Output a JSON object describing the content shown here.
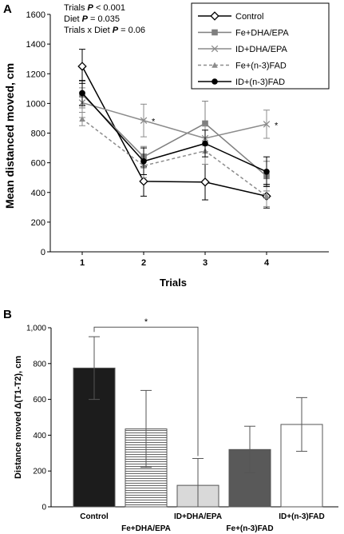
{
  "chart_data": [
    {
      "panel": "A",
      "type": "line",
      "xlabel": "Trials",
      "ylabel": "Mean distanced moved, cm",
      "ylim": [
        0,
        1600
      ],
      "yticks": [
        0,
        200,
        400,
        600,
        800,
        1000,
        1200,
        1400,
        1600
      ],
      "categories": [
        "1",
        "2",
        "3",
        "4"
      ],
      "annotations": [
        {
          "pre": "Trials ",
          "mid": "P",
          "post": " < 0.001"
        },
        {
          "pre": "Diet ",
          "mid": "P",
          "post": " = 0.035"
        },
        {
          "pre": "Trials x Diet ",
          "mid": "P",
          "post": " = 0.06"
        }
      ],
      "significance_marks": [
        {
          "category": "2",
          "label": "*"
        },
        {
          "category": "4",
          "label": "*"
        }
      ],
      "legend_position": "top-right",
      "series": [
        {
          "name": "Control",
          "values": [
            1250,
            475,
            470,
            375
          ],
          "errors": [
            115,
            100,
            120,
            80
          ],
          "marker": "diamond-open",
          "color": "#000000",
          "dashed": false
        },
        {
          "name": "Fe+DHA/EPA",
          "values": [
            1060,
            640,
            865,
            510
          ],
          "errors": [
            90,
            70,
            150,
            100
          ],
          "marker": "square",
          "color": "#7f7f7f",
          "dashed": false
        },
        {
          "name": "ID+DHA/EPA",
          "values": [
            1005,
            885,
            765,
            860
          ],
          "errors": [
            100,
            110,
            90,
            95
          ],
          "marker": "cross",
          "color": "#8c8c8c",
          "dashed": false
        },
        {
          "name": "Fe+(n-3)FAD",
          "values": [
            895,
            580,
            680,
            375
          ],
          "errors": [
            45,
            80,
            90,
            70
          ],
          "marker": "triangle",
          "color": "#8c8c8c",
          "dashed": true
        },
        {
          "name": "ID+(n-3)FAD",
          "values": [
            1070,
            610,
            730,
            540
          ],
          "errors": [
            85,
            90,
            90,
            100
          ],
          "marker": "circle",
          "color": "#000000",
          "dashed": false
        }
      ]
    },
    {
      "panel": "B",
      "type": "bar",
      "ylabel": "Distance moved Δ(T1-T2), cm",
      "ylim": [
        0,
        1000
      ],
      "yticks": [
        "0",
        "200",
        "400",
        "600",
        "800",
        "1,000"
      ],
      "yticks_values": [
        0,
        200,
        400,
        600,
        800,
        1000
      ],
      "categories": [
        "Control",
        "Fe+DHA/EPA",
        "ID+DHA/EPA",
        "Fe+(n-3)FAD",
        "ID+(n-3)FAD"
      ],
      "values": [
        775,
        435,
        120,
        320,
        460
      ],
      "errors": [
        175,
        215,
        150,
        130,
        150
      ],
      "fills": [
        "#1c1c1c",
        "hatch",
        "#d9d9d9",
        "#595959",
        "#ffffff"
      ],
      "significance": {
        "from": "Control",
        "to": "ID+DHA/EPA",
        "label": "*"
      }
    }
  ]
}
